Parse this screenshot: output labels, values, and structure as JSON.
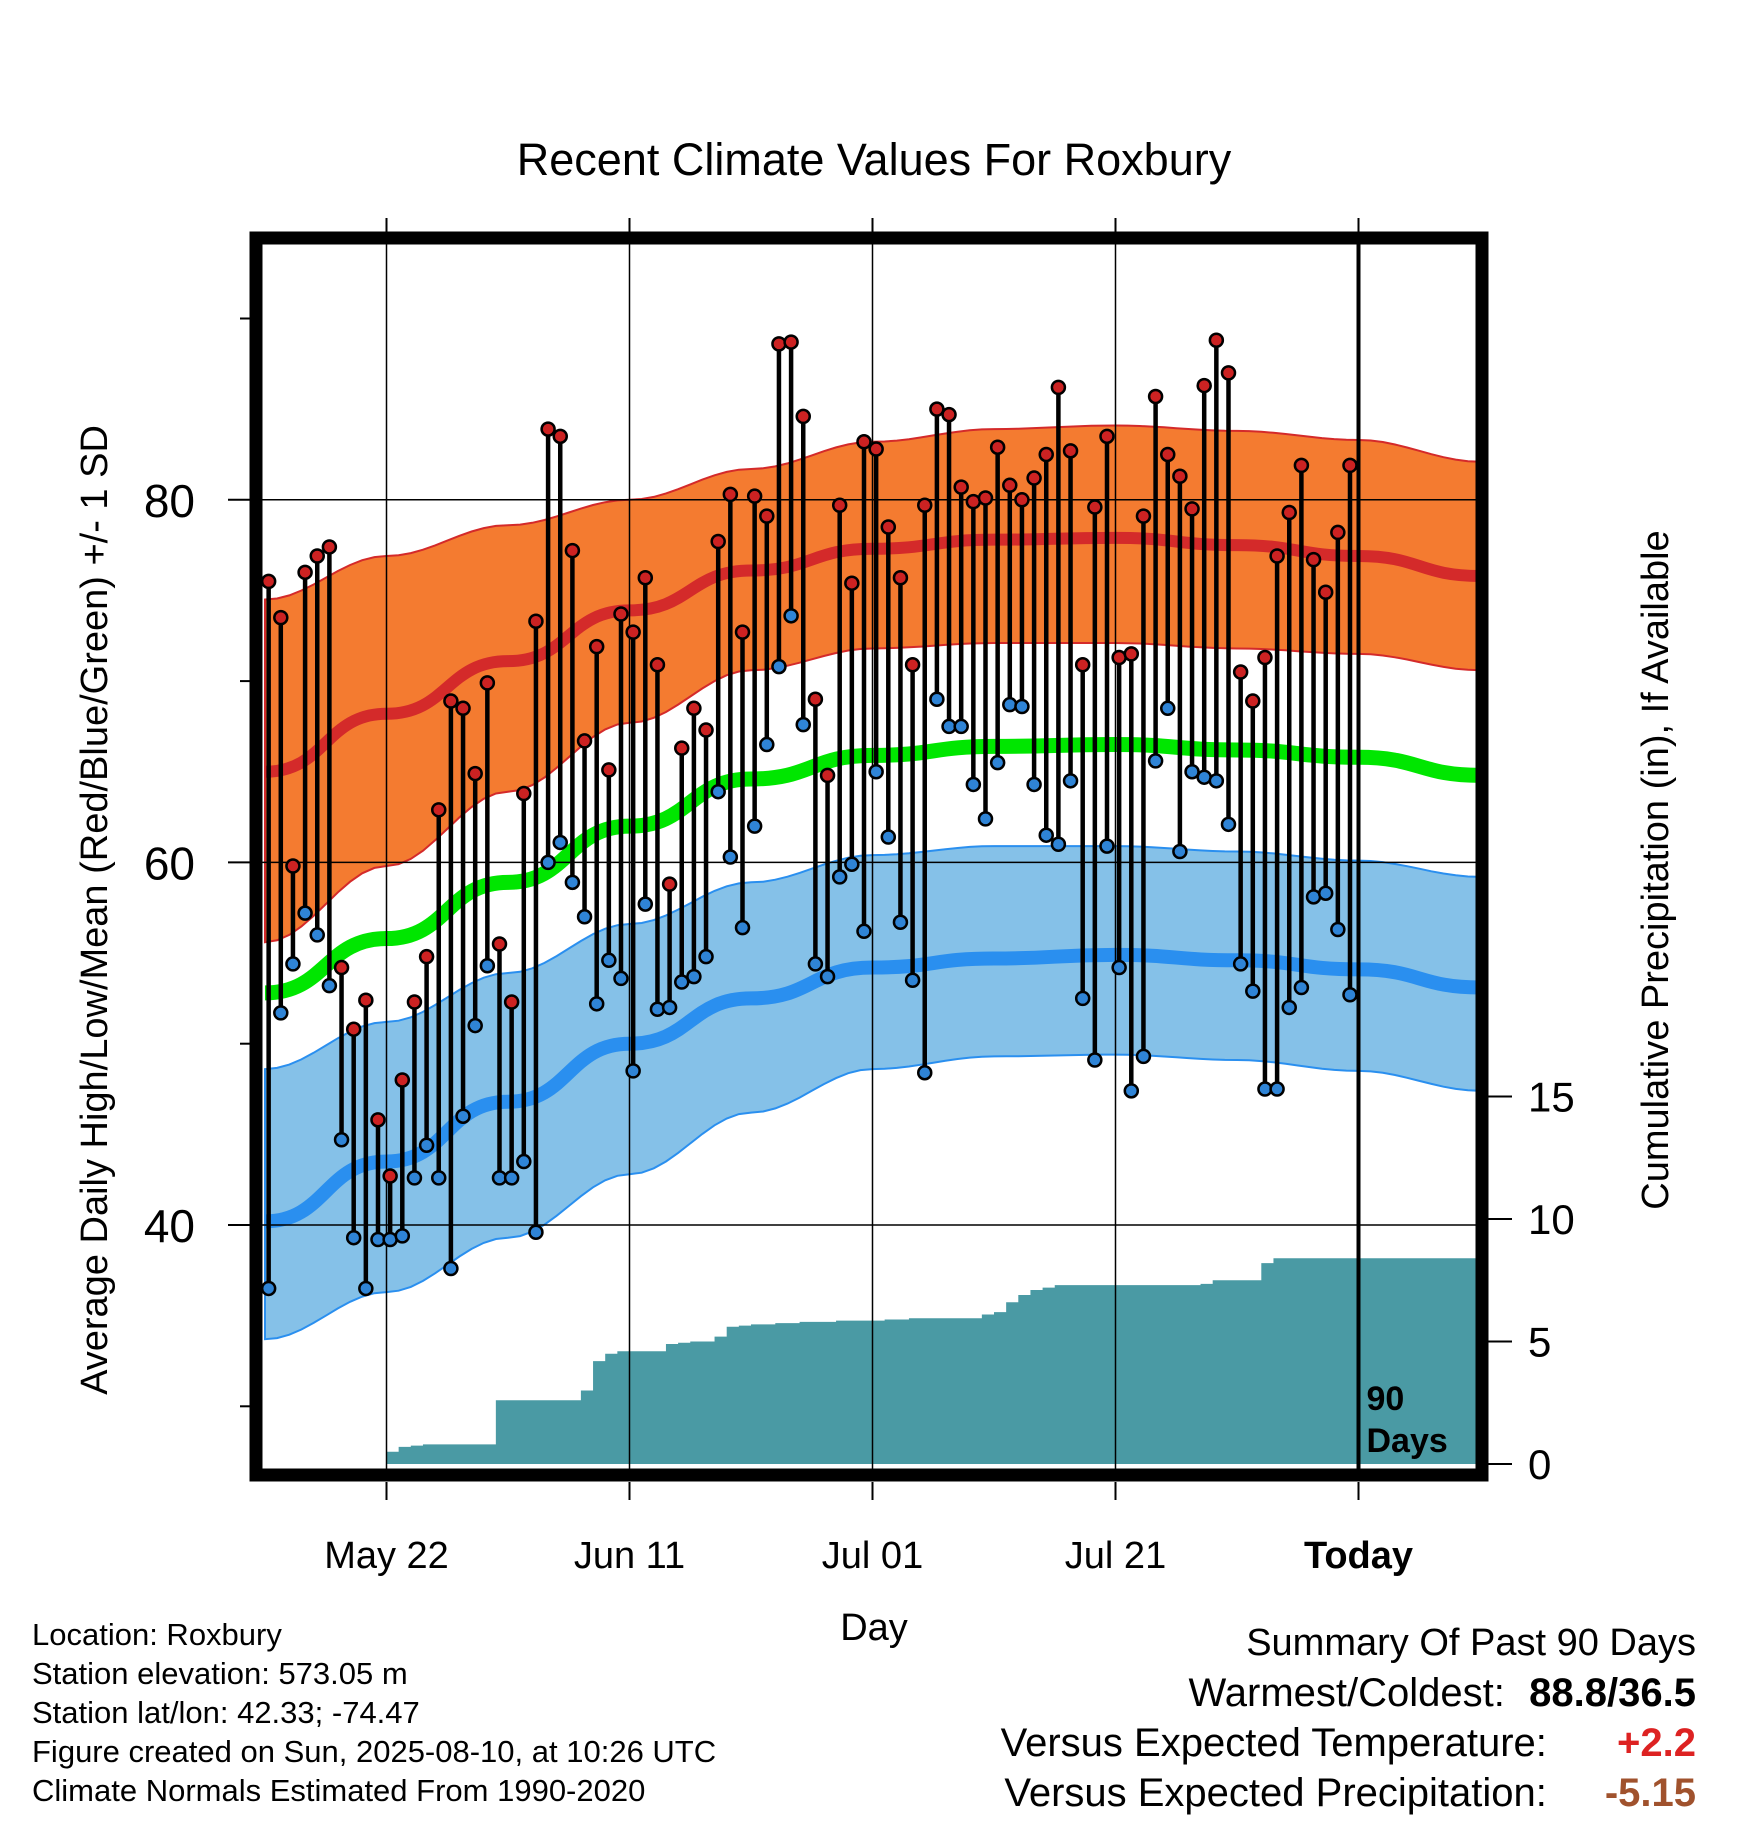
{
  "chart_data": {
    "type": "line",
    "title": "Recent Climate Values For Roxbury",
    "xlabel": "Day",
    "ylabel": "Average Daily High/Low/Mean (Red/Blue/Green) +/- 1 SD",
    "y2label": "Cumulative Precipitation (in), If Available",
    "x_ticks": [
      "May 22",
      "Jun 11",
      "Jul 01",
      "Jul 21",
      "Today"
    ],
    "y_ticks": [
      "40",
      "60",
      "80"
    ],
    "y2_ticks": [
      "0",
      "5",
      "10",
      "15"
    ],
    "ylim": [
      26.5,
      95.5
    ],
    "y2lim": [
      0,
      15
    ],
    "window_label_line1": "90",
    "window_label_line2": "Days",
    "colors": {
      "high_band": "#f47b30",
      "high_mean": "#d42a2a",
      "low_band": "#85c1e8",
      "low_mean": "#2a8fef",
      "mean": "#00e600",
      "precip": "#4a9aa4",
      "high_marker": "#cc2222",
      "low_marker": "#2f84d6"
    },
    "normals": {
      "day": [
        0,
        10,
        20,
        30,
        40,
        50,
        60,
        70,
        80,
        90,
        100
      ],
      "high_mean": [
        65.0,
        68.2,
        71.1,
        73.9,
        76.1,
        77.3,
        77.8,
        77.9,
        77.5,
        76.9,
        75.8
      ],
      "high_upper": [
        74.5,
        76.9,
        78.6,
        80.0,
        81.7,
        83.2,
        83.9,
        84.1,
        83.8,
        83.3,
        82.1
      ],
      "high_lower": [
        55.6,
        59.8,
        63.9,
        67.7,
        70.6,
        71.8,
        72.1,
        72.1,
        71.8,
        71.5,
        70.6
      ],
      "mean_line": [
        52.8,
        55.8,
        58.9,
        62.0,
        64.6,
        65.9,
        66.4,
        66.5,
        66.2,
        65.8,
        64.8
      ],
      "low_mean": [
        40.2,
        43.5,
        46.8,
        50.0,
        52.5,
        54.2,
        54.7,
        54.9,
        54.6,
        54.1,
        53.1
      ],
      "low_upper": [
        48.6,
        51.2,
        53.9,
        56.6,
        58.9,
        60.4,
        60.9,
        60.9,
        60.6,
        60.1,
        59.2
      ],
      "low_lower": [
        33.7,
        36.3,
        39.3,
        42.8,
        46.2,
        48.6,
        49.3,
        49.4,
        49.1,
        48.5,
        47.4
      ]
    },
    "daily_high": [
      75.5,
      73.5,
      59.8,
      76.0,
      76.9,
      77.4,
      54.2,
      50.8,
      52.4,
      45.8,
      42.7,
      48.0,
      52.3,
      54.8,
      62.9,
      68.9,
      68.5,
      64.9,
      69.9,
      55.5,
      52.3,
      63.8,
      73.3,
      83.9,
      83.5,
      77.2,
      66.7,
      71.9,
      65.1,
      73.7,
      72.7,
      75.7,
      70.9,
      58.8,
      66.3,
      68.5,
      67.3,
      77.7,
      80.3,
      72.7,
      80.2,
      79.1,
      88.6,
      88.7,
      84.6,
      69.0,
      64.8,
      79.7,
      75.4,
      83.2,
      82.8,
      78.5,
      75.7,
      70.9,
      79.7,
      85.0,
      84.7,
      80.7,
      79.9,
      80.1,
      82.9,
      80.8,
      80.0,
      81.2,
      82.5,
      86.2,
      82.7,
      70.9,
      79.6,
      83.5,
      71.3,
      71.5,
      79.1,
      85.7,
      82.5,
      81.3,
      79.5,
      86.3,
      88.8,
      87.0,
      70.5,
      68.9,
      71.3,
      76.9,
      79.3,
      81.9,
      76.7,
      74.9,
      78.2,
      81.9
    ],
    "daily_low": [
      36.5,
      51.7,
      54.4,
      57.2,
      56.0,
      53.2,
      44.7,
      39.3,
      36.5,
      39.2,
      39.2,
      39.4,
      42.6,
      44.4,
      42.6,
      37.6,
      46.0,
      51.0,
      54.3,
      42.6,
      42.6,
      43.5,
      39.6,
      60.0,
      61.1,
      58.9,
      57.0,
      52.2,
      54.6,
      53.6,
      48.5,
      57.7,
      51.9,
      52.0,
      53.4,
      53.7,
      54.8,
      63.9,
      60.3,
      56.4,
      62.0,
      66.5,
      70.8,
      73.6,
      67.6,
      54.4,
      53.7,
      59.2,
      59.9,
      56.2,
      65.0,
      61.4,
      56.7,
      53.5,
      48.4,
      69.0,
      67.5,
      67.5,
      64.3,
      62.4,
      65.5,
      68.7,
      68.6,
      64.3,
      61.5,
      61.0,
      64.5,
      52.5,
      49.1,
      60.9,
      54.2,
      47.4,
      49.3,
      65.6,
      68.5,
      60.6,
      65.0,
      64.7,
      64.5,
      62.1,
      54.4,
      52.9,
      47.5,
      47.5,
      52.0,
      53.1,
      58.1,
      58.3,
      56.3,
      52.7
    ],
    "precip": {
      "day": [
        9,
        10,
        11,
        12,
        13,
        14,
        15,
        16,
        17,
        18,
        19,
        20,
        21,
        22,
        23,
        24,
        25,
        26,
        27,
        28,
        29,
        30,
        31,
        32,
        33,
        34,
        35,
        36,
        37,
        38,
        39,
        40,
        41,
        42,
        43,
        44,
        45,
        46,
        47,
        48,
        49,
        50,
        51,
        52,
        53,
        54,
        55,
        56,
        57,
        58,
        59,
        60,
        61,
        62,
        63,
        64,
        65,
        66,
        67,
        68,
        69,
        70,
        71,
        72,
        73,
        74,
        75,
        76,
        77,
        78,
        79,
        80,
        81,
        82,
        83,
        84,
        85,
        86,
        87,
        88,
        89,
        90,
        91,
        92,
        93,
        94,
        95,
        96,
        97,
        98,
        99,
        100
      ],
      "value": [
        0.0,
        0.5,
        0.7,
        0.75,
        0.8,
        0.8,
        0.8,
        0.8,
        0.8,
        0.8,
        2.6,
        2.6,
        2.6,
        2.6,
        2.6,
        2.6,
        2.6,
        3.0,
        4.2,
        4.5,
        4.6,
        4.6,
        4.6,
        4.6,
        4.9,
        4.95,
        5.0,
        5.0,
        5.2,
        5.6,
        5.65,
        5.7,
        5.7,
        5.75,
        5.75,
        5.8,
        5.8,
        5.8,
        5.85,
        5.85,
        5.85,
        5.85,
        5.9,
        5.9,
        5.95,
        5.95,
        5.95,
        5.95,
        5.95,
        5.95,
        6.1,
        6.2,
        6.6,
        6.9,
        7.1,
        7.2,
        7.3,
        7.3,
        7.3,
        7.3,
        7.3,
        7.3,
        7.3,
        7.3,
        7.3,
        7.3,
        7.3,
        7.3,
        7.35,
        7.5,
        7.5,
        7.5,
        7.5,
        8.2,
        8.4,
        8.4,
        8.4,
        8.4,
        8.4,
        8.4,
        8.4,
        8.4,
        8.4,
        8.4,
        8.4,
        8.4,
        8.4,
        8.4,
        8.4,
        8.4,
        8.4,
        8.4
      ]
    }
  },
  "station": {
    "location": "Location: Roxbury",
    "elevation": "Station elevation: 573.05 m",
    "latlon": "Station lat/lon: 42.33; -74.47",
    "created": "Figure created on Sun, 2025-08-10, at 10:26 UTC",
    "normals": "Climate Normals Estimated From 1990-2020"
  },
  "summary": {
    "heading": "Summary Of Past 90 Days",
    "warmest_label": "Warmest/Coldest:",
    "warmest_value": "88.8/36.5",
    "temp_label": "Versus Expected Temperature:",
    "temp_value": "+2.2",
    "temp_color": "#dd2222",
    "precip_label": "Versus Expected Precipitation:",
    "precip_value": "-5.15",
    "precip_color": "#a0522d"
  }
}
